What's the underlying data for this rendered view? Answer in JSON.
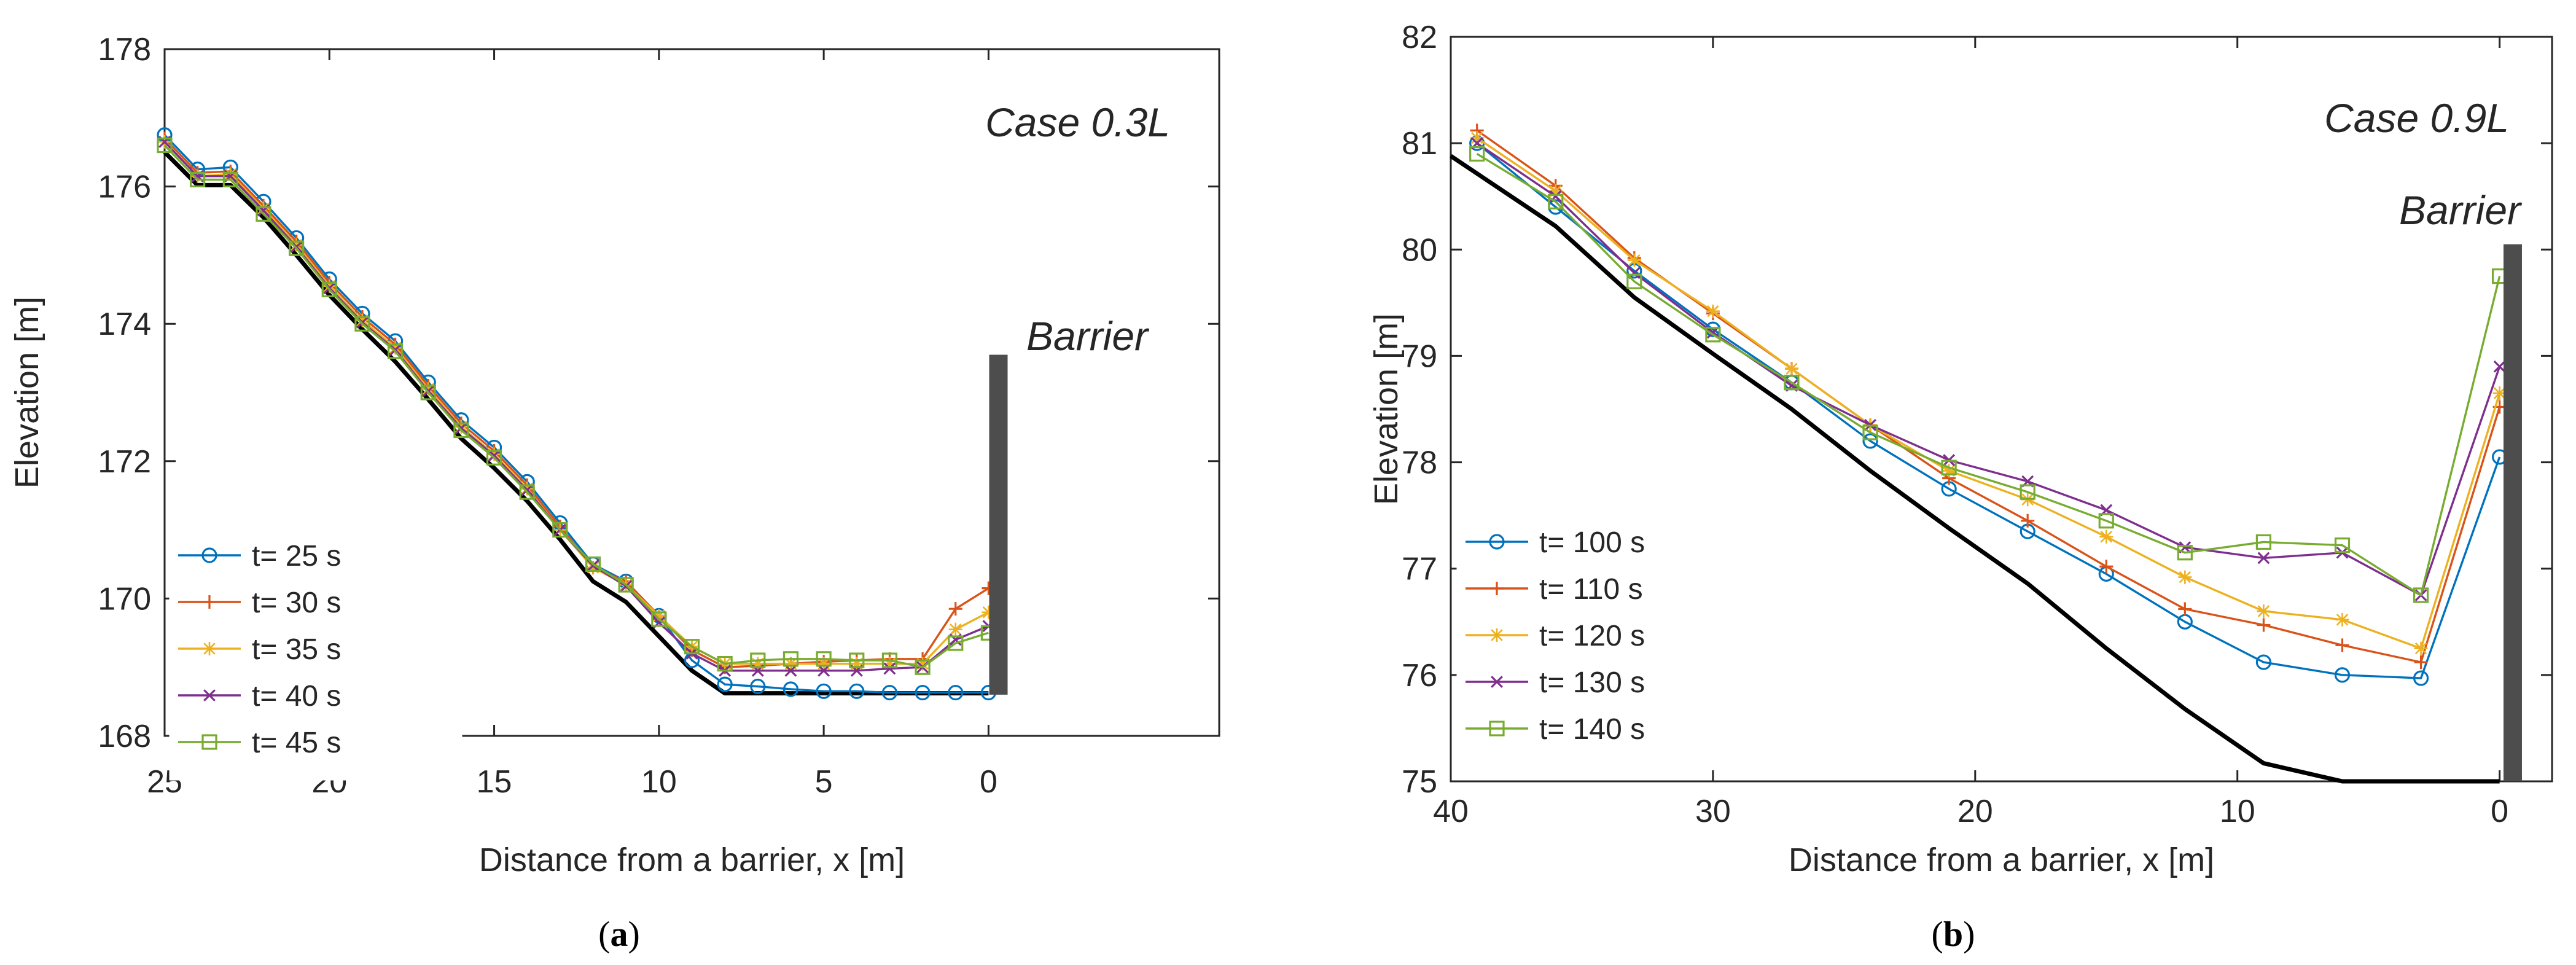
{
  "chart_data": [
    {
      "type": "line",
      "panel_label": "a",
      "title": "Case 0.3L",
      "xlabel": "Distance from a barrier, x [m]",
      "ylabel": "Elevation [m]",
      "xlim": [
        25,
        -7
      ],
      "ylim": [
        168,
        178
      ],
      "x_reversed": true,
      "xticks": [
        25,
        20,
        15,
        10,
        5,
        0
      ],
      "yticks": [
        168,
        170,
        172,
        174,
        176,
        178
      ],
      "legend_position": "lower-left",
      "barrier": {
        "label": "Barrier",
        "x": -0.3,
        "y_bottom": 168.6,
        "y_top": 173.55
      },
      "bed": {
        "x": [
          25,
          24,
          23,
          22,
          21,
          20,
          19,
          18,
          17,
          16,
          15,
          14,
          13,
          12,
          11,
          10,
          9,
          8,
          7,
          6,
          5,
          4,
          3,
          2,
          1,
          0
        ],
        "y": [
          176.5,
          176.02,
          176.02,
          175.55,
          175.0,
          174.42,
          173.92,
          173.45,
          172.9,
          172.33,
          171.9,
          171.42,
          170.86,
          170.25,
          169.95,
          169.45,
          168.95,
          168.62,
          168.62,
          168.62,
          168.62,
          168.62,
          168.62,
          168.62,
          168.62,
          168.62
        ]
      },
      "series": [
        {
          "name": "t= 25 s",
          "color": "#0072BD",
          "marker": "circle",
          "x": [
            25,
            24,
            23,
            22,
            21,
            20,
            19,
            18,
            17,
            16,
            15,
            14,
            13,
            12,
            11,
            10,
            9,
            8,
            7,
            6,
            5,
            4,
            3,
            2,
            1,
            0
          ],
          "y": [
            176.75,
            176.25,
            176.28,
            175.78,
            175.25,
            174.65,
            174.15,
            173.75,
            173.15,
            172.6,
            172.2,
            171.7,
            171.1,
            170.5,
            170.25,
            169.75,
            169.1,
            168.75,
            168.72,
            168.68,
            168.65,
            168.65,
            168.63,
            168.63,
            168.63,
            168.63
          ]
        },
        {
          "name": "t= 30 s",
          "color": "#D95319",
          "marker": "plus",
          "x": [
            25,
            24,
            23,
            22,
            21,
            20,
            19,
            18,
            17,
            16,
            15,
            14,
            13,
            12,
            11,
            10,
            9,
            8,
            7,
            6,
            5,
            4,
            3,
            2,
            1,
            0
          ],
          "y": [
            176.7,
            176.2,
            176.22,
            175.72,
            175.2,
            174.6,
            174.1,
            173.7,
            173.1,
            172.55,
            172.15,
            171.65,
            171.05,
            170.45,
            170.25,
            169.75,
            169.25,
            169.0,
            169.02,
            169.05,
            169.08,
            169.1,
            169.12,
            169.12,
            169.85,
            170.15
          ]
        },
        {
          "name": "t= 35 s",
          "color": "#EDB120",
          "marker": "asterisk",
          "x": [
            25,
            24,
            23,
            22,
            21,
            20,
            19,
            18,
            17,
            16,
            15,
            14,
            13,
            12,
            11,
            10,
            9,
            8,
            7,
            6,
            5,
            4,
            3,
            2,
            1,
            0
          ],
          "y": [
            176.65,
            176.15,
            176.18,
            175.68,
            175.15,
            174.55,
            174.05,
            173.65,
            173.05,
            172.5,
            172.1,
            171.6,
            171.0,
            170.45,
            170.2,
            169.75,
            169.3,
            169.05,
            169.05,
            169.05,
            169.05,
            169.05,
            169.05,
            169.05,
            169.55,
            169.8
          ]
        },
        {
          "name": "t= 40 s",
          "color": "#7E2F8E",
          "marker": "x",
          "x": [
            25,
            24,
            23,
            22,
            21,
            20,
            19,
            18,
            17,
            16,
            15,
            14,
            13,
            12,
            11,
            10,
            9,
            8,
            7,
            6,
            5,
            4,
            3,
            2,
            1,
            0
          ],
          "y": [
            176.65,
            176.15,
            176.15,
            175.65,
            175.12,
            174.52,
            174.02,
            173.62,
            173.02,
            172.48,
            172.08,
            171.58,
            171.0,
            170.48,
            170.18,
            169.65,
            169.2,
            168.95,
            168.95,
            168.95,
            168.95,
            168.95,
            168.98,
            169.0,
            169.4,
            169.6
          ]
        },
        {
          "name": "t= 45 s",
          "color": "#77AC30",
          "marker": "square",
          "x": [
            25,
            24,
            23,
            22,
            21,
            20,
            19,
            18,
            17,
            16,
            15,
            14,
            13,
            12,
            11,
            10,
            9,
            8,
            7,
            6,
            5,
            4,
            3,
            2,
            1,
            0
          ],
          "y": [
            176.6,
            176.1,
            176.1,
            175.6,
            175.1,
            174.5,
            174.0,
            173.6,
            173.0,
            172.45,
            172.05,
            171.55,
            171.0,
            170.5,
            170.2,
            169.7,
            169.3,
            169.05,
            169.1,
            169.12,
            169.12,
            169.1,
            169.1,
            169.0,
            169.35,
            169.5
          ]
        }
      ]
    },
    {
      "type": "line",
      "panel_label": "b",
      "title": "Case 0.9L",
      "xlabel": "Distance from a barrier, x [m]",
      "ylabel": "Elevation [m]",
      "xlim": [
        40,
        -2
      ],
      "ylim": [
        75,
        82
      ],
      "x_reversed": true,
      "xticks": [
        40,
        30,
        20,
        10,
        0
      ],
      "yticks": [
        75,
        76,
        77,
        78,
        79,
        80,
        81,
        82
      ],
      "legend_position": "lower-left",
      "barrier": {
        "label": "Barrier",
        "x": -0.5,
        "y_bottom": 75.0,
        "y_top": 80.05
      },
      "bed": {
        "x": [
          40,
          36,
          33,
          30,
          27,
          24,
          21,
          18,
          15,
          12,
          9,
          6,
          3,
          0
        ],
        "y": [
          80.88,
          80.22,
          79.55,
          79.02,
          78.5,
          77.92,
          77.38,
          76.86,
          76.25,
          75.68,
          75.17,
          75.0,
          75.0,
          75.0
        ]
      },
      "series": [
        {
          "name": "t= 100 s",
          "color": "#0072BD",
          "marker": "circle",
          "x": [
            39,
            36,
            33,
            30,
            27,
            24,
            21,
            18,
            15,
            12,
            9,
            6,
            3,
            0
          ],
          "y": [
            81.0,
            80.4,
            79.8,
            79.25,
            78.75,
            78.2,
            77.75,
            77.35,
            76.95,
            76.5,
            76.12,
            76.0,
            75.97,
            78.05
          ]
        },
        {
          "name": "t= 110 s",
          "color": "#D95319",
          "marker": "plus",
          "x": [
            39,
            36,
            33,
            30,
            27,
            24,
            21,
            18,
            15,
            12,
            9,
            6,
            3,
            0
          ],
          "y": [
            81.12,
            80.6,
            79.92,
            79.4,
            78.88,
            78.35,
            77.85,
            77.45,
            77.02,
            76.62,
            76.47,
            76.28,
            76.12,
            78.52
          ]
        },
        {
          "name": "t= 120 s",
          "color": "#EDB120",
          "marker": "asterisk",
          "x": [
            39,
            36,
            33,
            30,
            27,
            24,
            21,
            18,
            15,
            12,
            9,
            6,
            3,
            0
          ],
          "y": [
            81.05,
            80.55,
            79.9,
            79.42,
            78.88,
            78.35,
            77.92,
            77.65,
            77.3,
            76.92,
            76.6,
            76.52,
            76.25,
            78.65
          ]
        },
        {
          "name": "t= 130 s",
          "color": "#7E2F8E",
          "marker": "x",
          "x": [
            39,
            36,
            33,
            30,
            27,
            24,
            21,
            18,
            15,
            12,
            9,
            6,
            3,
            0
          ],
          "y": [
            81.0,
            80.5,
            79.78,
            79.22,
            78.72,
            78.35,
            78.02,
            77.82,
            77.55,
            77.2,
            77.1,
            77.15,
            76.75,
            78.9
          ]
        },
        {
          "name": "t= 140 s",
          "color": "#77AC30",
          "marker": "square",
          "x": [
            39,
            36,
            33,
            30,
            27,
            24,
            21,
            18,
            15,
            12,
            9,
            6,
            3,
            0
          ],
          "y": [
            80.9,
            80.45,
            79.7,
            79.2,
            78.75,
            78.28,
            77.95,
            77.72,
            77.45,
            77.15,
            77.25,
            77.22,
            76.75,
            79.75
          ]
        }
      ]
    }
  ],
  "captions": {
    "a_open": "(",
    "a_letter": "a",
    "a_close": ")",
    "b_open": "(",
    "b_letter": "b",
    "b_close": ")"
  }
}
